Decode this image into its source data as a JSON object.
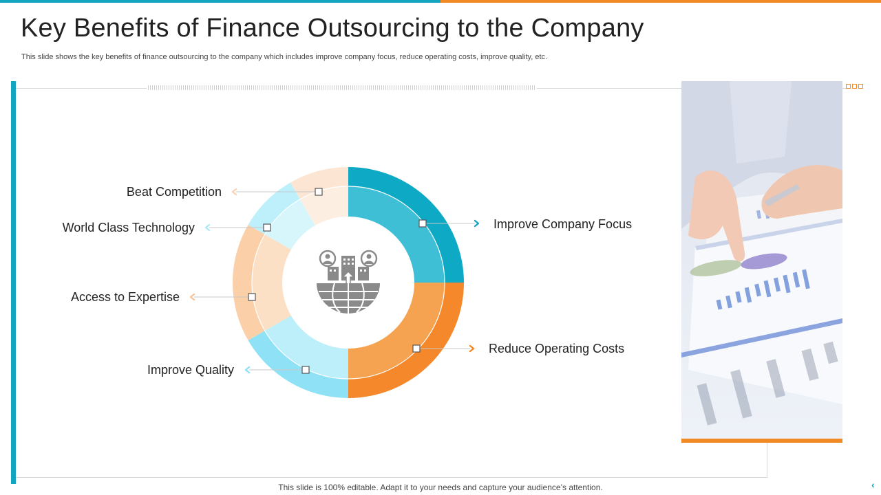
{
  "slide": {
    "title": "Key Benefits of Finance Outsourcing to the Company",
    "subtitle": "This slide shows the key benefits of finance outsourcing to the company which includes improve company focus, reduce operating costs, improve quality, etc.",
    "footer": "This slide is 100% editable. Adapt it to your needs and capture your audience’s attention."
  },
  "diagram": {
    "center_icon": "business-globe-icon",
    "segments": [
      {
        "label": "Improve Company Focus",
        "outer_color": "#0EA9C4",
        "inner_color": "#3EBFD5",
        "arrow_color": "#13A7BF"
      },
      {
        "label": "Reduce Operating Costs",
        "outer_color": "#F5882A",
        "inner_color": "#F6A351",
        "arrow_color": "#F08A24"
      },
      {
        "label": "Improve Quality",
        "outer_color": "#8FE2F5",
        "inner_color": "#BCEFFA",
        "arrow_color": "#8FE2F5"
      },
      {
        "label": "Access to Expertise",
        "outer_color": "#FBD0A9",
        "inner_color": "#FCE0C5",
        "arrow_color": "#F9C495"
      },
      {
        "label": "World Class Technology",
        "outer_color": "#BDF0FA",
        "inner_color": "#D7F6FC",
        "arrow_color": "#AEE9F6"
      },
      {
        "label": "Beat Competition",
        "outer_color": "#FCE6D3",
        "inner_color": "#FDEEE2",
        "arrow_color": "#FAD2B3"
      }
    ]
  },
  "colors": {
    "accent_teal": "#13A7BF",
    "accent_orange": "#F08A24"
  }
}
